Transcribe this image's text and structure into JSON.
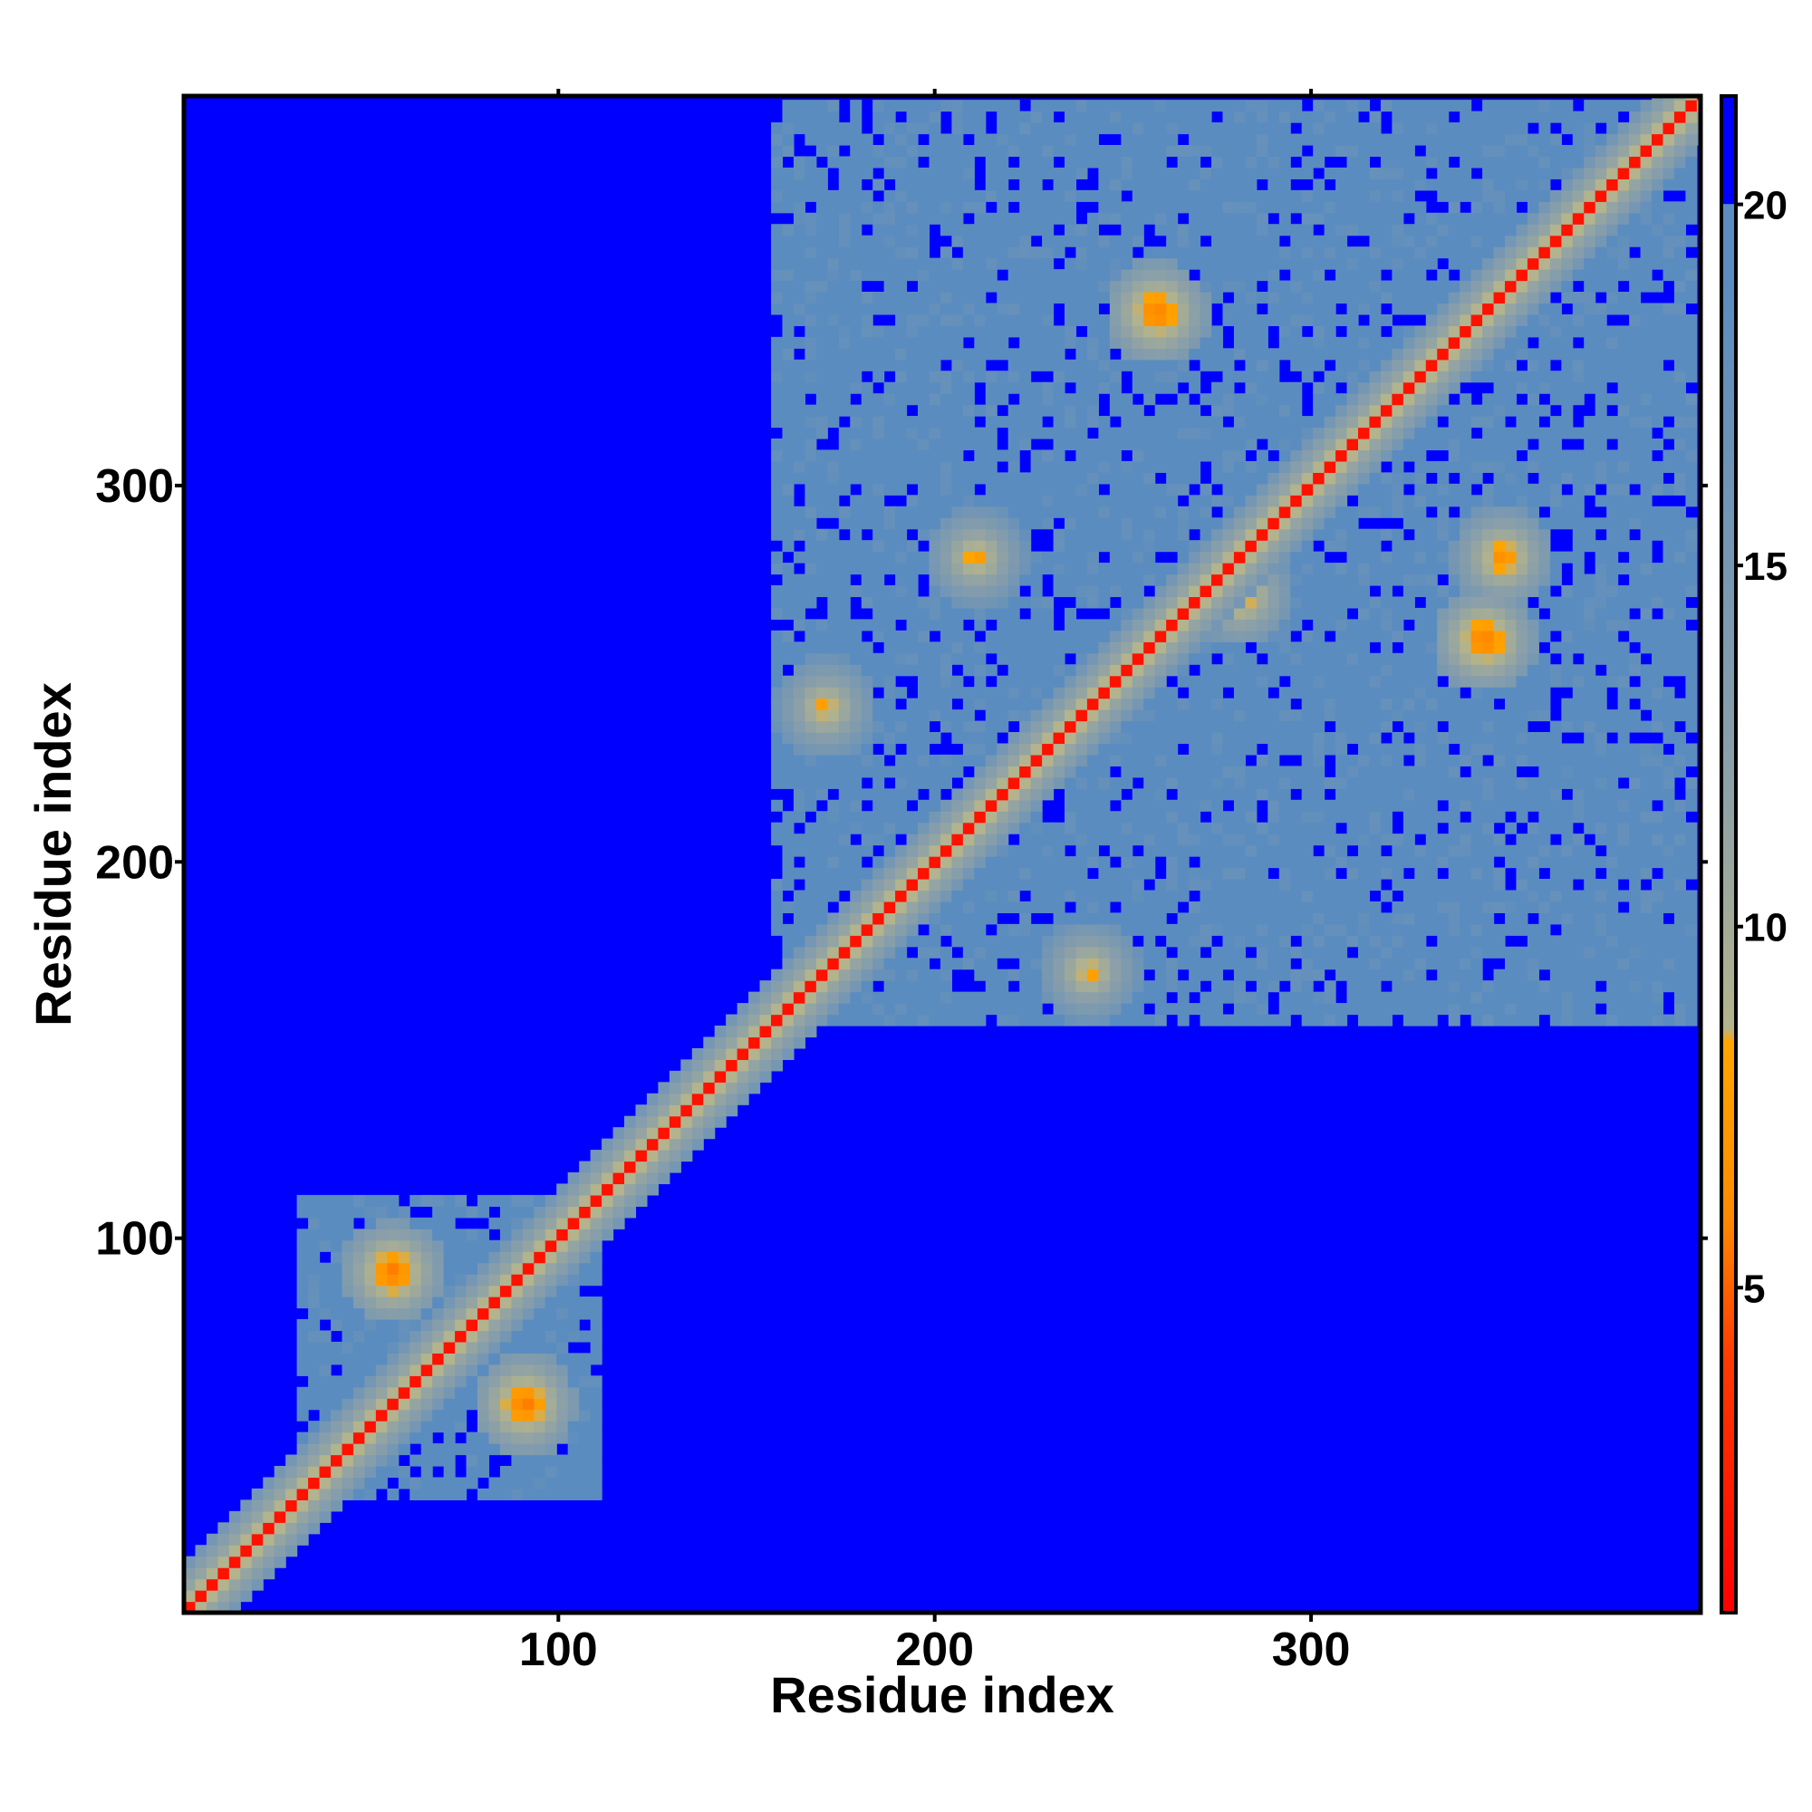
{
  "chart_data": {
    "type": "heatmap",
    "title": "",
    "xlabel": "Residue index",
    "ylabel": "Residue index",
    "xlim": [
      1,
      403
    ],
    "ylim": [
      1,
      403
    ],
    "x_ticks": [
      100,
      200,
      300
    ],
    "y_ticks": [
      100,
      200,
      300
    ],
    "grid": false,
    "colorbar": {
      "ticks": [
        5,
        10,
        15,
        20
      ],
      "range": [
        0.5,
        21.5
      ],
      "stops": [
        {
          "value": 0.5,
          "color": "#ff0000"
        },
        {
          "value": 4.0,
          "color": "#ff3a00"
        },
        {
          "value": 6.0,
          "color": "#ff8a00"
        },
        {
          "value": 8.4,
          "color": "#ffa500"
        },
        {
          "value": 8.6,
          "color": "#b4b48c"
        },
        {
          "value": 12.0,
          "color": "#8ca0a8"
        },
        {
          "value": 19.0,
          "color": "#5a8cc0"
        },
        {
          "value": 20.0,
          "color": "#5a8cc0"
        },
        {
          "value": 20.01,
          "color": "#0000ff"
        },
        {
          "value": 21.5,
          "color": "#0000ff"
        }
      ]
    },
    "contact_features": {
      "background_distance": 21,
      "diagonal": {
        "from": 1,
        "to": 403,
        "min_distance": 1.5
      },
      "dense_blocks": [
        {
          "x": [
            35,
            110
          ],
          "y": [
            30,
            100
          ]
        },
        {
          "x": [
            155,
            400
          ],
          "y": [
            155,
            400
          ]
        }
      ],
      "hotspots": [
        {
          "x": 55,
          "y": 90,
          "distance": 5
        },
        {
          "x": 90,
          "y": 55,
          "distance": 5
        },
        {
          "x": 258,
          "y": 345,
          "distance": 5
        },
        {
          "x": 345,
          "y": 258,
          "distance": 5
        },
        {
          "x": 280,
          "y": 270,
          "distance": 6
        },
        {
          "x": 350,
          "y": 280,
          "distance": 6
        },
        {
          "x": 210,
          "y": 280,
          "distance": 7
        },
        {
          "x": 240,
          "y": 170,
          "distance": 7
        },
        {
          "x": 170,
          "y": 240,
          "distance": 7
        }
      ]
    }
  }
}
